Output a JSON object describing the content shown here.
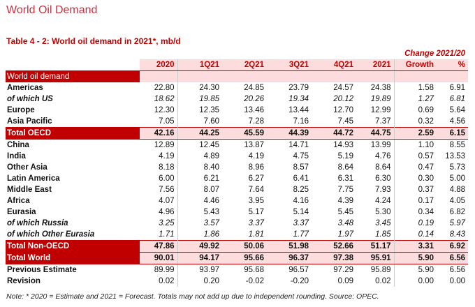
{
  "page_title": "World Oil Demand",
  "table_title": "Table 4 - 2: World oil demand in 2021*, mb/d",
  "change_header": "Change 2021/20",
  "columns": [
    "2020",
    "1Q21",
    "2Q21",
    "3Q21",
    "4Q21",
    "2021",
    "Growth",
    "%"
  ],
  "section_label": "World oil demand",
  "rows": [
    {
      "label": "Americas",
      "style": "body",
      "values": [
        "22.80",
        "24.30",
        "24.85",
        "23.79",
        "24.57",
        "24.38",
        "1.58",
        "6.91"
      ]
    },
    {
      "label": "of which US",
      "style": "sub",
      "values": [
        "18.62",
        "19.85",
        "20.26",
        "19.34",
        "20.12",
        "19.89",
        "1.27",
        "6.81"
      ]
    },
    {
      "label": "Europe",
      "style": "body",
      "values": [
        "12.30",
        "12.35",
        "13.46",
        "13.44",
        "12.70",
        "12.99",
        "0.69",
        "5.64"
      ]
    },
    {
      "label": "Asia Pacific",
      "style": "body",
      "values": [
        "7.05",
        "7.60",
        "7.28",
        "7.16",
        "7.45",
        "7.37",
        "0.32",
        "4.56"
      ]
    },
    {
      "label": "Total OECD",
      "style": "total",
      "values": [
        "42.16",
        "44.25",
        "45.59",
        "44.39",
        "44.72",
        "44.75",
        "2.59",
        "6.15"
      ]
    },
    {
      "label": "China",
      "style": "body",
      "values": [
        "12.89",
        "12.45",
        "13.87",
        "14.71",
        "14.93",
        "13.99",
        "1.10",
        "8.55"
      ]
    },
    {
      "label": "India",
      "style": "body",
      "values": [
        "4.19",
        "4.89",
        "4.19",
        "4.75",
        "5.19",
        "4.76",
        "0.57",
        "13.53"
      ]
    },
    {
      "label": "Other Asia",
      "style": "body",
      "values": [
        "8.18",
        "8.40",
        "8.96",
        "8.57",
        "8.64",
        "8.64",
        "0.47",
        "5.73"
      ]
    },
    {
      "label": "Latin America",
      "style": "body",
      "values": [
        "6.00",
        "6.21",
        "6.27",
        "6.41",
        "6.31",
        "6.30",
        "0.30",
        "5.00"
      ]
    },
    {
      "label": "Middle East",
      "style": "body",
      "values": [
        "7.56",
        "8.07",
        "7.64",
        "8.25",
        "7.75",
        "7.93",
        "0.37",
        "4.88"
      ]
    },
    {
      "label": "Africa",
      "style": "body",
      "values": [
        "4.07",
        "4.46",
        "3.95",
        "4.16",
        "4.39",
        "4.24",
        "0.17",
        "4.05"
      ]
    },
    {
      "label": "Eurasia",
      "style": "body",
      "values": [
        "4.96",
        "5.43",
        "5.17",
        "5.14",
        "5.45",
        "5.30",
        "0.34",
        "6.82"
      ]
    },
    {
      "label": "of which Russia",
      "style": "sub",
      "values": [
        "3.25",
        "3.57",
        "3.37",
        "3.37",
        "3.48",
        "3.45",
        "0.19",
        "5.97"
      ]
    },
    {
      "label": "of which Other Eurasia",
      "style": "sub",
      "values": [
        "1.71",
        "1.86",
        "1.81",
        "1.77",
        "1.97",
        "1.85",
        "0.14",
        "8.43"
      ]
    },
    {
      "label": "Total Non-OECD",
      "style": "total",
      "values": [
        "47.86",
        "49.92",
        "50.06",
        "51.98",
        "52.66",
        "51.17",
        "3.31",
        "6.92"
      ]
    },
    {
      "label": "Total World",
      "style": "total",
      "values": [
        "90.01",
        "94.17",
        "95.66",
        "96.37",
        "97.38",
        "95.91",
        "5.90",
        "6.56"
      ]
    },
    {
      "label": "Previous Estimate",
      "style": "body",
      "values": [
        "89.99",
        "93.97",
        "95.68",
        "96.57",
        "97.29",
        "95.89",
        "5.90",
        "6.56"
      ]
    },
    {
      "label": "Revision",
      "style": "body",
      "values": [
        "0.02",
        "0.20",
        "-0.02",
        "-0.20",
        "0.09",
        "0.02",
        "0.00",
        "0.00"
      ]
    }
  ],
  "note": "Note: * 2020 = Estimate and 2021 = Forecast. Totals may not add up due to independent rounding. Source: OPEC.",
  "colors": {
    "accent": "#c00000",
    "title": "#c9303e",
    "band": "#fcdcdc"
  }
}
